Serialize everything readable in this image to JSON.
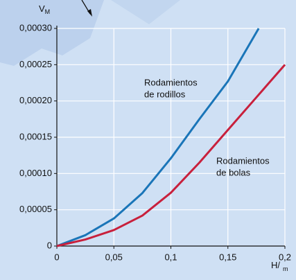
{
  "chart_data": {
    "type": "line",
    "ylabel": {
      "main": "V",
      "sub": "M"
    },
    "xlabel": {
      "main": "H/",
      "sub": "m"
    },
    "xlim": [
      0,
      0.2
    ],
    "ylim": [
      0,
      0.0003
    ],
    "xticks": [
      0,
      {
        "value": 0.05,
        "label": "0,05"
      },
      {
        "value": 0.1,
        "label": "0,1"
      },
      {
        "value": 0.15,
        "label": "0,15"
      },
      {
        "value": 0.2,
        "label": "0,2"
      }
    ],
    "yticks": [
      0,
      {
        "value": 5e-05,
        "label": "0,00005"
      },
      {
        "value": 0.0001,
        "label": "0,00010"
      },
      {
        "value": 0.00015,
        "label": "0,00015"
      },
      {
        "value": 0.0002,
        "label": "0,00020"
      },
      {
        "value": 0.00025,
        "label": "0,00025"
      },
      {
        "value": 0.0003,
        "label": "0,00030"
      }
    ],
    "grid": true,
    "series": [
      {
        "name": [
          "Rodamientos",
          "de rodillos"
        ],
        "color": "#1a75b8",
        "x": [
          0,
          0.025,
          0.05,
          0.075,
          0.1,
          0.125,
          0.15,
          0.177
        ],
        "values": [
          0,
          1.5e-05,
          3.8e-05,
          7.3e-05,
          0.000121,
          0.000175,
          0.000227,
          0.0003
        ]
      },
      {
        "name": [
          "Rodamientos",
          "de bolas"
        ],
        "color": "#c8203c",
        "x": [
          0,
          0.025,
          0.05,
          0.075,
          0.1,
          0.125,
          0.15,
          0.175,
          0.2
        ],
        "values": [
          0,
          9e-06,
          2.2e-05,
          4.2e-05,
          7.35e-05,
          0.000115,
          0.00016,
          0.000205,
          0.00025
        ]
      }
    ]
  }
}
